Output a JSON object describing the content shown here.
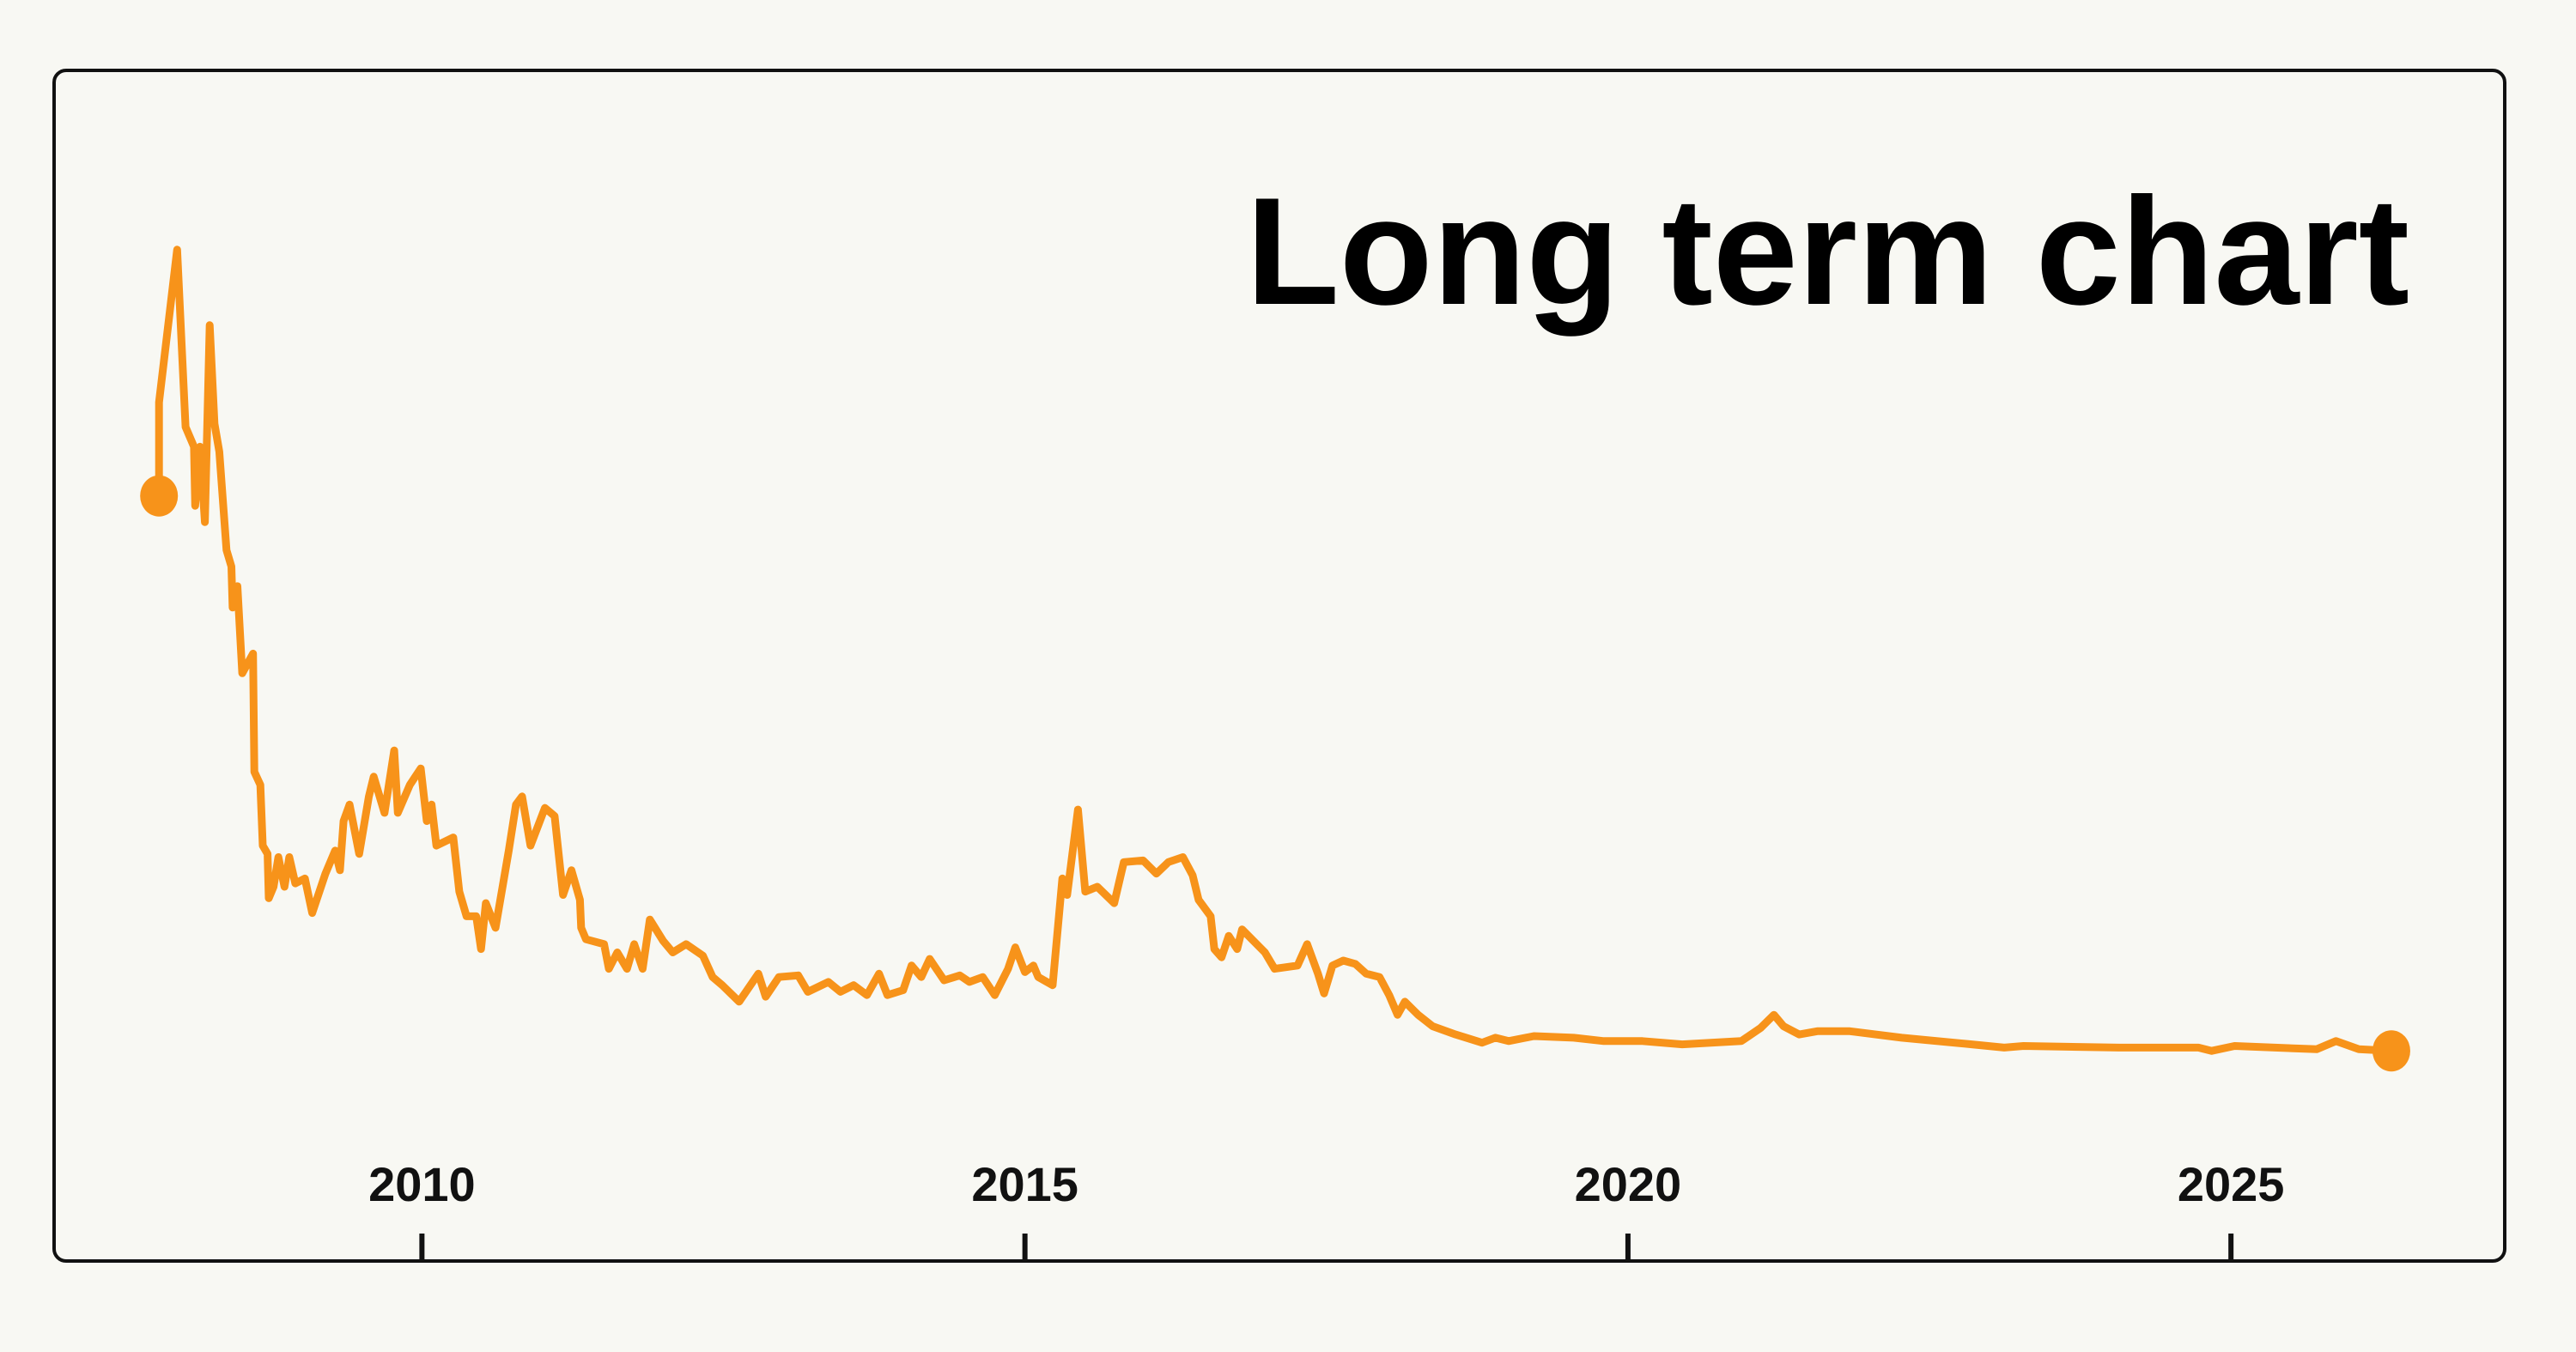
{
  "chart_data": {
    "type": "line",
    "title": "Long term chart",
    "color": "#f7931a",
    "xlim": [
      2006.95,
      2027.27
    ],
    "xticks": [
      2010,
      2015,
      2020,
      2025
    ],
    "ylim": [
      0,
      110
    ],
    "x": [
      2007.82,
      2007.82,
      2007.97,
      2008.04,
      2008.11,
      2008.12,
      2008.16,
      2008.2,
      2008.24,
      2008.28,
      2008.32,
      2008.38,
      2008.42,
      2008.43,
      2008.47,
      2008.51,
      2008.6,
      2008.61,
      2008.66,
      2008.68,
      2008.72,
      2008.73,
      2008.77,
      2008.81,
      2008.86,
      2008.9,
      2008.95,
      2009.03,
      2009.09,
      2009.2,
      2009.28,
      2009.32,
      2009.35,
      2009.4,
      2009.48,
      2009.56,
      2009.6,
      2009.69,
      2009.77,
      2009.8,
      2009.9,
      2009.99,
      2010.04,
      2010.08,
      2010.12,
      2010.26,
      2010.31,
      2010.37,
      2010.45,
      2010.49,
      2010.53,
      2010.61,
      2010.72,
      2010.78,
      2010.83,
      2010.9,
      2011.02,
      2011.1,
      2011.17,
      2011.24,
      2011.31,
      2011.32,
      2011.36,
      2011.51,
      2011.55,
      2011.62,
      2011.7,
      2011.76,
      2011.83,
      2011.89,
      2012.0,
      2012.08,
      2012.19,
      2012.33,
      2012.41,
      2012.49,
      2012.63,
      2012.79,
      2012.85,
      2012.96,
      2013.12,
      2013.2,
      2013.37,
      2013.47,
      2013.58,
      2013.69,
      2013.79,
      2013.86,
      2013.99,
      2014.06,
      2014.14,
      2014.21,
      2014.33,
      2014.46,
      2014.54,
      2014.65,
      2014.75,
      2014.86,
      2014.92,
      2015.0,
      2015.07,
      2015.11,
      2015.23,
      2015.31,
      2015.35,
      2015.44,
      2015.5,
      2015.6,
      2015.74,
      2015.82,
      2015.98,
      2016.09,
      2016.19,
      2016.31,
      2016.39,
      2016.44,
      2016.54,
      2016.57,
      2016.63,
      2016.69,
      2016.76,
      2016.8,
      2016.99,
      2017.07,
      2017.26,
      2017.34,
      2017.43,
      2017.48,
      2017.55,
      2017.64,
      2017.74,
      2017.83,
      2017.94,
      2018.02,
      2018.09,
      2018.15,
      2018.26,
      2018.38,
      2018.57,
      2018.79,
      2018.9,
      2019.01,
      2019.22,
      2019.55,
      2019.8,
      2020.12,
      2020.45,
      2020.94,
      2021.1,
      2021.21,
      2021.29,
      2021.42,
      2021.57,
      2021.84,
      2022.27,
      2022.85,
      2023.12,
      2023.28,
      2024.07,
      2024.73,
      2024.84,
      2025.03,
      2025.71,
      2025.87,
      2026.06,
      2026.33
    ],
    "values": [
      79.6,
      91,
      109.6,
      88,
      85.6,
      78.4,
      85.6,
      76.4,
      100.4,
      88.4,
      85,
      73,
      71,
      66,
      68.6,
      58,
      60.4,
      46,
      44.4,
      37,
      36,
      30.6,
      32,
      35.6,
      32,
      35.6,
      32.4,
      33,
      28.8,
      33.6,
      36.4,
      34,
      40,
      42,
      36,
      43,
      45.4,
      41,
      48.6,
      41,
      44.4,
      46.4,
      40,
      42,
      37,
      38,
      31.4,
      28.4,
      28.4,
      24.4,
      30,
      27,
      36.4,
      42,
      43,
      37,
      41.6,
      40.6,
      31,
      34,
      30.4,
      27,
      25.6,
      25,
      22,
      24,
      22,
      25,
      22,
      28,
      25.4,
      24,
      25,
      23.6,
      21,
      20,
      18,
      21.4,
      18.6,
      21,
      21.2,
      19.2,
      20.4,
      19.2,
      20,
      18.8,
      21.4,
      18.8,
      19.4,
      22.4,
      21,
      23.2,
      20.6,
      21.2,
      20.4,
      21,
      18.8,
      22,
      24.6,
      21.6,
      22.4,
      21,
      20,
      33,
      31,
      41.4,
      31.4,
      32,
      30,
      35,
      35.2,
      33.6,
      35,
      35.6,
      33.4,
      30.4,
      28.4,
      24.4,
      23.4,
      26,
      24.4,
      26.8,
      24,
      22,
      22.4,
      25,
      21.4,
      19,
      22.4,
      23,
      22.6,
      21.4,
      21,
      18.8,
      16.4,
      18,
      16.4,
      15,
      14,
      13,
      13.6,
      13.2,
      13.8,
      13.6,
      13.2,
      13.2,
      12.8,
      13.2,
      14.8,
      16.4,
      15,
      14,
      14.4,
      14.4,
      13.6,
      12.8,
      12.4,
      12.6,
      12.4,
      12.4,
      12,
      12.6,
      12.2,
      13.2,
      12.2,
      12
    ]
  }
}
